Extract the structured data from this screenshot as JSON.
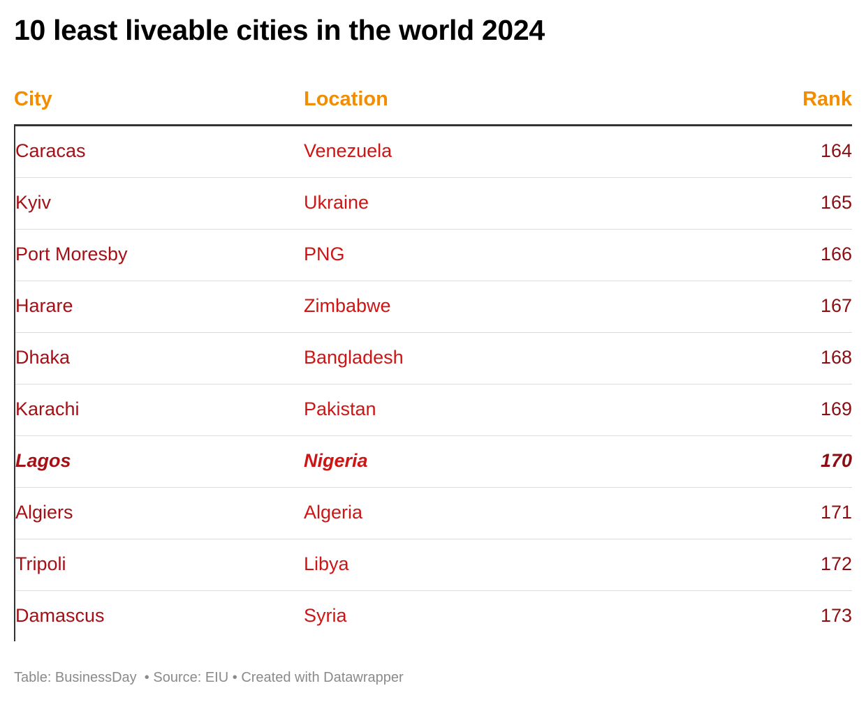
{
  "title": "10 least liveable cities in the world 2024",
  "chart_data": {
    "type": "table",
    "title": "10 least liveable cities in the world 2024",
    "columns": [
      "City",
      "Location",
      "Rank"
    ],
    "rows": [
      {
        "city": "Caracas",
        "location": "Venezuela",
        "rank": "164",
        "highlight": false
      },
      {
        "city": "Kyiv",
        "location": "Ukraine",
        "rank": "165",
        "highlight": false
      },
      {
        "city": "Port Moresby",
        "location": "PNG",
        "rank": "166",
        "highlight": false
      },
      {
        "city": "Harare",
        "location": "Zimbabwe",
        "rank": "167",
        "highlight": false
      },
      {
        "city": "Dhaka",
        "location": "Bangladesh",
        "rank": "168",
        "highlight": false
      },
      {
        "city": "Karachi",
        "location": "Pakistan",
        "rank": "169",
        "highlight": false
      },
      {
        "city": "Lagos",
        "location": "Nigeria",
        "rank": "170",
        "highlight": true
      },
      {
        "city": "Algiers",
        "location": "Algeria",
        "rank": "171",
        "highlight": false
      },
      {
        "city": "Tripoli",
        "location": "Libya",
        "rank": "172",
        "highlight": false
      },
      {
        "city": "Damascus",
        "location": "Syria",
        "rank": "173",
        "highlight": false
      }
    ]
  },
  "colors": {
    "header": "#f28c00",
    "city_text": "#a50f15",
    "location_text": "#cf1414",
    "rank_text": "#8b0d12",
    "footer_text": "#8a8a8a"
  },
  "footer": {
    "table_credit": "Table: BusinessDay",
    "source": "Source: EIU",
    "created_with": "Created with Datawrapper",
    "separator": "•"
  }
}
